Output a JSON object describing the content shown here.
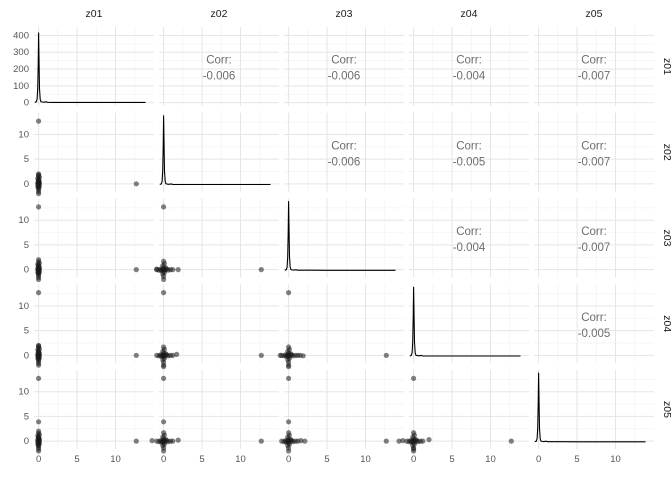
{
  "chart_data": {
    "type": "scatter",
    "subtype": "scatterplot-matrix-ggpairs",
    "title": "",
    "variables": [
      "z01",
      "z02",
      "z03",
      "z04",
      "z05"
    ],
    "grid": true,
    "legend": "none",
    "corr_label_prefix": "Corr:",
    "correlations": [
      {
        "row": 1,
        "col": 2,
        "pair": "z01-z02",
        "value": "-0.006"
      },
      {
        "row": 1,
        "col": 3,
        "pair": "z01-z03",
        "value": "-0.006"
      },
      {
        "row": 1,
        "col": 4,
        "pair": "z01-z04",
        "value": "-0.004"
      },
      {
        "row": 1,
        "col": 5,
        "pair": "z01-z05",
        "value": "-0.007"
      },
      {
        "row": 2,
        "col": 3,
        "pair": "z02-z03",
        "value": "-0.006"
      },
      {
        "row": 2,
        "col": 4,
        "pair": "z02-z04",
        "value": "-0.005"
      },
      {
        "row": 2,
        "col": 5,
        "pair": "z02-z05",
        "value": "-0.007"
      },
      {
        "row": 3,
        "col": 4,
        "pair": "z03-z04",
        "value": "-0.004"
      },
      {
        "row": 3,
        "col": 5,
        "pair": "z03-z05",
        "value": "-0.007"
      },
      {
        "row": 4,
        "col": 5,
        "pair": "z04-z05",
        "value": "-0.005"
      }
    ],
    "x_axis": {
      "domain": [
        -0.6,
        15.0
      ],
      "major_ticks": [
        0,
        5,
        10
      ],
      "minor_ticks": [
        2.5,
        7.5,
        12.5
      ]
    },
    "y_axis_scatter": {
      "domain": [
        -1.6,
        14.4
      ],
      "major_ticks": [
        0,
        5,
        10
      ],
      "minor_ticks": [
        2.5,
        7.5,
        12.5
      ]
    },
    "y_axis_row1_density": {
      "domain": [
        -20,
        450
      ],
      "major_ticks": [
        0,
        100,
        200,
        300,
        400
      ],
      "minor_ticks": [
        50,
        150,
        250,
        350
      ],
      "peak": 415
    },
    "density_profile": [
      [
        -0.5,
        0.004
      ],
      [
        -0.3,
        0.012
      ],
      [
        -0.2,
        0.05
      ],
      [
        -0.12,
        0.2
      ],
      [
        -0.06,
        0.55
      ],
      [
        0,
        1.0
      ],
      [
        0.06,
        0.55
      ],
      [
        0.12,
        0.2
      ],
      [
        0.2,
        0.05
      ],
      [
        0.3,
        0.015
      ],
      [
        0.45,
        0.009
      ],
      [
        0.7,
        0.006
      ],
      [
        1.0,
        0.012
      ],
      [
        1.15,
        0.005
      ],
      [
        1.8,
        0.004
      ],
      [
        3,
        0.004
      ],
      [
        5,
        0.003
      ],
      [
        8,
        0.003
      ],
      [
        11,
        0.003
      ],
      [
        13.9,
        0.003
      ]
    ],
    "clusters": {
      "v": [
        [
          0,
          -2.0
        ],
        [
          0,
          -1.6
        ],
        [
          0,
          -1.2
        ],
        [
          0,
          -0.9
        ],
        [
          -0.1,
          -0.6
        ],
        [
          0.1,
          -0.5
        ],
        [
          0,
          -0.3
        ],
        [
          -0.1,
          -0.1
        ],
        [
          0.1,
          0
        ],
        [
          0,
          0
        ],
        [
          0,
          0.1
        ],
        [
          -0.1,
          0.3
        ],
        [
          0.1,
          0.4
        ],
        [
          0,
          0.6
        ],
        [
          0,
          0.9
        ],
        [
          -0.1,
          1.1
        ],
        [
          0.1,
          1.3
        ],
        [
          0,
          1.6
        ],
        [
          0,
          2.0
        ],
        [
          0,
          0.2
        ],
        [
          0,
          -0.7
        ],
        [
          0,
          0.7
        ]
      ],
      "plus": [
        [
          -0.9,
          0
        ],
        [
          -0.6,
          -0.1
        ],
        [
          -0.4,
          0.1
        ],
        [
          0,
          -2.0
        ],
        [
          0,
          -1.4
        ],
        [
          -0.1,
          -0.9
        ],
        [
          0.1,
          -0.6
        ],
        [
          0,
          -0.3
        ],
        [
          -0.2,
          0
        ],
        [
          0.2,
          0
        ],
        [
          0,
          0
        ],
        [
          0,
          0.1
        ],
        [
          0.4,
          0.1
        ],
        [
          0.6,
          -0.1
        ],
        [
          0.9,
          0
        ],
        [
          1.2,
          0
        ],
        [
          0,
          0.4
        ],
        [
          -0.1,
          0.8
        ],
        [
          0.1,
          1.2
        ],
        [
          0,
          1.7
        ],
        [
          0.3,
          0.3
        ],
        [
          -0.3,
          -0.2
        ]
      ]
    },
    "scatter_panels": [
      {
        "row": 2,
        "col": 1,
        "x_var": "z01",
        "y_var": "z02",
        "cluster": "v",
        "extra_points": [
          [
            0,
            12.7
          ],
          [
            0,
            1.8
          ],
          [
            12.7,
            0
          ]
        ]
      },
      {
        "row": 3,
        "col": 1,
        "x_var": "z01",
        "y_var": "z03",
        "cluster": "v",
        "extra_points": [
          [
            0,
            12.7
          ],
          [
            12.7,
            0
          ]
        ]
      },
      {
        "row": 3,
        "col": 2,
        "x_var": "z02",
        "y_var": "z03",
        "cluster": "plus",
        "extra_points": [
          [
            0,
            12.7
          ],
          [
            12.7,
            0
          ],
          [
            1.9,
            0
          ],
          [
            -0.9,
            0.1
          ]
        ]
      },
      {
        "row": 4,
        "col": 1,
        "x_var": "z01",
        "y_var": "z04",
        "cluster": "v",
        "extra_points": [
          [
            0,
            12.7
          ],
          [
            12.7,
            0
          ],
          [
            0,
            1.9
          ]
        ]
      },
      {
        "row": 4,
        "col": 2,
        "x_var": "z02",
        "y_var": "z04",
        "cluster": "plus",
        "extra_points": [
          [
            0,
            12.7
          ],
          [
            12.7,
            0
          ],
          [
            1.7,
            0.2
          ],
          [
            0,
            -2.3
          ]
        ]
      },
      {
        "row": 4,
        "col": 3,
        "x_var": "z03",
        "y_var": "z04",
        "cluster": "plus",
        "extra_points": [
          [
            0,
            12.7
          ],
          [
            12.7,
            0
          ],
          [
            1.5,
            0
          ],
          [
            1.9,
            -0.1
          ],
          [
            -1.1,
            0
          ],
          [
            0,
            -2.3
          ]
        ]
      },
      {
        "row": 5,
        "col": 1,
        "x_var": "z01",
        "y_var": "z05",
        "cluster": "v",
        "extra_points": [
          [
            0,
            12.7
          ],
          [
            0,
            3.9
          ],
          [
            12.7,
            0
          ]
        ]
      },
      {
        "row": 5,
        "col": 2,
        "x_var": "z02",
        "y_var": "z05",
        "cluster": "plus",
        "extra_points": [
          [
            0,
            12.7
          ],
          [
            0,
            3.9
          ],
          [
            12.7,
            0
          ],
          [
            1.9,
            0.2
          ],
          [
            -1.5,
            0.1
          ]
        ]
      },
      {
        "row": 5,
        "col": 3,
        "x_var": "z03",
        "y_var": "z05",
        "cluster": "plus",
        "extra_points": [
          [
            0,
            12.7
          ],
          [
            0,
            3.9
          ],
          [
            12.7,
            0
          ],
          [
            1.6,
            0.1
          ],
          [
            2.1,
            0
          ]
        ]
      },
      {
        "row": 5,
        "col": 4,
        "x_var": "z04",
        "y_var": "z05",
        "cluster": "plus",
        "extra_points": [
          [
            0,
            12.7
          ],
          [
            12.7,
            0
          ],
          [
            -1.9,
            0
          ],
          [
            -1.4,
            0.1
          ],
          [
            2.0,
            0.3
          ],
          [
            0,
            -1.6
          ]
        ]
      }
    ],
    "diagonal": {
      "type": "density",
      "cells": [
        "z01",
        "z02",
        "z03",
        "z04",
        "z05"
      ]
    },
    "colors": {
      "background": "#ffffff",
      "grid_major": "#e5e5e5",
      "grid_minor": "#f3f3f3",
      "strip_text": "#1a1a1a",
      "axis_text": "#555555",
      "corr_text": "#6e6e6e",
      "point": "#1a1a1a",
      "density_line": "#000000"
    }
  }
}
